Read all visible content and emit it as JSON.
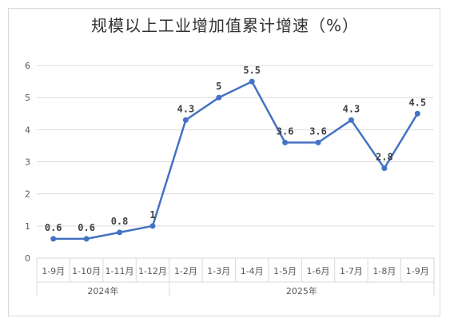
{
  "chart_data": {
    "type": "line",
    "title": "规模以上工业增加值累计增速（%）",
    "categories": [
      "1-9月",
      "1-10月",
      "1-11月",
      "1-12月",
      "1-2月",
      "1-3月",
      "1-4月",
      "1-5月",
      "1-6月",
      "1-7月",
      "1-8月",
      "1-9月"
    ],
    "groups": [
      {
        "label": "2024年",
        "count": 4
      },
      {
        "label": "2025年",
        "count": 8
      }
    ],
    "series": [
      {
        "values": [
          0.6,
          0.6,
          0.8,
          1,
          4.3,
          5,
          5.5,
          3.6,
          3.6,
          4.3,
          2.8,
          4.5
        ],
        "data_labels": [
          "0.6",
          "0.6",
          "0.8",
          "1",
          "4.3",
          "5",
          "5.5",
          "3.6",
          "3.6",
          "4.3",
          "2.8",
          "4.5"
        ],
        "color": "#4472c4"
      }
    ],
    "ylim": [
      0,
      6
    ],
    "yticks": [
      "0",
      "1",
      "2",
      "3",
      "4",
      "5",
      "6"
    ],
    "grid": true,
    "legend": "none"
  }
}
